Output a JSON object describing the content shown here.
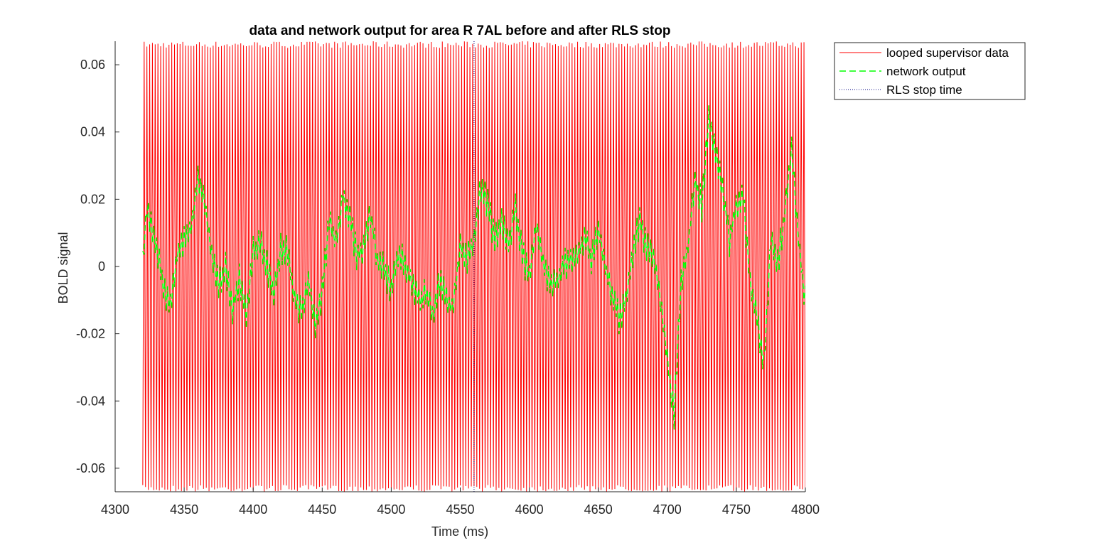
{
  "chart_data": {
    "type": "line",
    "title": "data and network output for area R 7AL before and after RLS stop",
    "xlabel": "Time (ms)",
    "ylabel": "BOLD signal",
    "xlim": [
      4300,
      4800
    ],
    "ylim": [
      -0.067,
      0.067
    ],
    "xticks": [
      4300,
      4350,
      4400,
      4450,
      4500,
      4550,
      4600,
      4650,
      4700,
      4750,
      4800
    ],
    "xtick_labels": [
      "4300",
      "4350",
      "4400",
      "4450",
      "4500",
      "4550",
      "4600",
      "4650",
      "4700",
      "4750",
      "4800"
    ],
    "yticks": [
      -0.06,
      -0.04,
      -0.02,
      0,
      0.02,
      0.04,
      0.06
    ],
    "ytick_labels": [
      "-0.06",
      "-0.04",
      "-0.02",
      "0",
      "0.02",
      "0.04",
      "0.06"
    ],
    "grid": false,
    "legend_position": "outside-top-right",
    "rls_stop_time": 4560,
    "series": [
      {
        "name": "looped supervisor data",
        "color": "#ff0000",
        "style": "solid",
        "x_start": 4320,
        "x_end": 4800,
        "oscillation_period_ms": 2,
        "amplitude": 0.066
      },
      {
        "name": "network output",
        "color": "#00ff00",
        "style": "dashed",
        "x": [
          4320,
          4323,
          4326,
          4330,
          4335,
          4340,
          4345,
          4350,
          4355,
          4360,
          4365,
          4370,
          4375,
          4380,
          4385,
          4390,
          4395,
          4400,
          4405,
          4410,
          4415,
          4420,
          4425,
          4430,
          4435,
          4440,
          4445,
          4450,
          4455,
          4460,
          4465,
          4470,
          4475,
          4480,
          4485,
          4490,
          4495,
          4500,
          4505,
          4510,
          4515,
          4520,
          4525,
          4530,
          4535,
          4540,
          4545,
          4550,
          4555,
          4560,
          4565,
          4570,
          4575,
          4580,
          4585,
          4590,
          4595,
          4600,
          4605,
          4610,
          4615,
          4620,
          4625,
          4630,
          4635,
          4640,
          4645,
          4650,
          4655,
          4660,
          4665,
          4670,
          4675,
          4680,
          4685,
          4690,
          4695,
          4700,
          4705,
          4710,
          4715,
          4720,
          4725,
          4730,
          4735,
          4740,
          4745,
          4750,
          4755,
          4760,
          4765,
          4770,
          4775,
          4780,
          4785,
          4790,
          4795,
          4800
        ],
        "y": [
          0.0,
          0.018,
          0.012,
          0.006,
          -0.006,
          -0.012,
          0.004,
          0.008,
          0.012,
          0.026,
          0.018,
          0.004,
          -0.006,
          0.0,
          -0.012,
          -0.004,
          -0.014,
          0.004,
          0.008,
          0.0,
          -0.008,
          0.006,
          0.004,
          -0.01,
          -0.014,
          -0.004,
          -0.018,
          -0.008,
          0.014,
          0.006,
          0.022,
          0.014,
          0.004,
          0.006,
          0.016,
          0.002,
          0.0,
          -0.008,
          0.004,
          0.0,
          -0.004,
          -0.01,
          -0.008,
          -0.014,
          -0.004,
          -0.01,
          -0.012,
          0.006,
          0.002,
          0.008,
          0.024,
          0.018,
          0.008,
          0.014,
          0.006,
          0.018,
          0.004,
          -0.004,
          0.012,
          0.002,
          -0.006,
          -0.004,
          0.0,
          0.002,
          0.004,
          0.008,
          0.002,
          0.012,
          0.0,
          -0.008,
          -0.016,
          -0.01,
          0.004,
          0.014,
          0.006,
          0.002,
          -0.01,
          -0.028,
          -0.044,
          -0.004,
          0.006,
          0.026,
          0.018,
          0.044,
          0.034,
          0.024,
          0.008,
          0.018,
          0.02,
          -0.004,
          -0.016,
          -0.028,
          0.008,
          0.0,
          0.016,
          0.036,
          0.008,
          -0.01
        ]
      },
      {
        "name": "RLS stop time",
        "color": "#000080",
        "style": "dotted"
      }
    ]
  }
}
